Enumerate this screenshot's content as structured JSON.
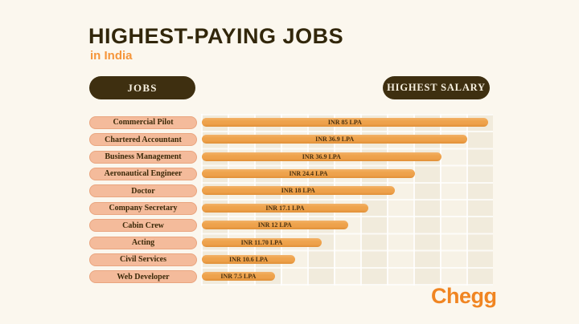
{
  "header": {
    "title": "HIGHEST-PAYING JOBS",
    "subtitle": "in India"
  },
  "columns": {
    "jobs_label": "JOBS",
    "salary_label": "HIGHEST SALARY"
  },
  "chart_data": {
    "type": "bar",
    "orientation": "horizontal",
    "title": "HIGHEST-PAYING JOBS in India",
    "categories": [
      "Commercial Pilot",
      "Chartered Accountant",
      "Business Management",
      "Aeronautical Engineer",
      "Doctor",
      "Company Secretary",
      "Cabin Crew",
      "Acting",
      "Civil Services",
      "Web Developer"
    ],
    "values": [
      85,
      36.9,
      36.9,
      24.4,
      18,
      17.1,
      12,
      11.7,
      10.6,
      7.5
    ],
    "value_labels": [
      "INR 85 LPA",
      "INR 36.9 LPA",
      "INR 36.9 LPA",
      "INR 24.4 LPA",
      "INR 18 LPA",
      "INR 17.1 LPA",
      "INR 12 LPA",
      "INR 11.70 LPA",
      "INR 10.6 LPA",
      "INR 7.5 LPA"
    ],
    "unit": "INR LPA",
    "xlabel": "HIGHEST SALARY",
    "ylabel": "JOBS",
    "grid": true,
    "legend_position": "none",
    "bar_fractions": [
      0.98,
      0.91,
      0.82,
      0.73,
      0.66,
      0.57,
      0.5,
      0.41,
      0.32,
      0.25
    ]
  },
  "branding": {
    "logo_text": "Chegg"
  },
  "colors": {
    "background": "#fbf7ee",
    "title_text": "#32270b",
    "accent_orange": "#f5953a",
    "bar_fill": "#efa44d",
    "label_pill_fill": "#f4bb9b",
    "header_pill_fill": "#3e2f10",
    "header_pill_text": "#f6efdf",
    "logo_orange": "#f08522"
  }
}
